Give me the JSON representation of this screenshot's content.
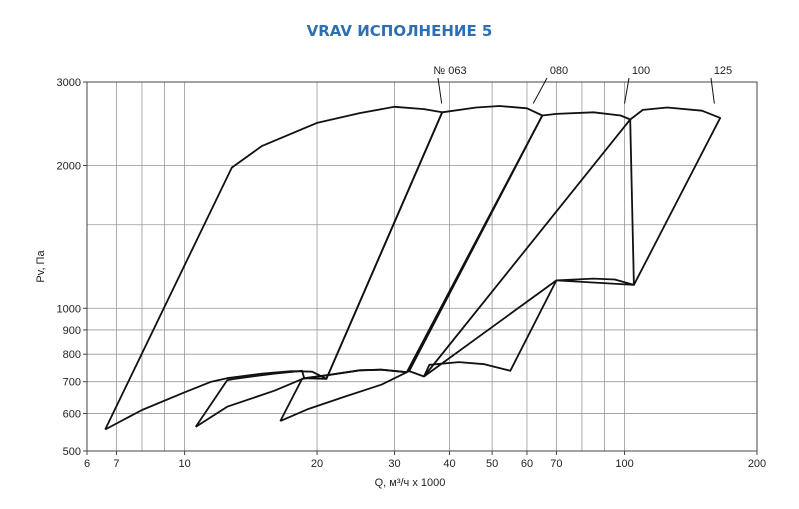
{
  "title": "VRAV ИСПОЛНЕНИЕ 5",
  "colors": {
    "title": "#2e6fb4",
    "grid": "#999999",
    "curve": "#111111"
  },
  "chart_data": {
    "type": "line",
    "title": "VRAV ИСПОЛНЕНИЕ 5",
    "xlabel": "Q, м³/ч x 1000",
    "ylabel": "Pv, Па",
    "xscale": "log",
    "yscale": "log",
    "xlim": [
      6,
      200
    ],
    "ylim": [
      500,
      3000
    ],
    "grid": true,
    "x_ticks": [
      6,
      7,
      10,
      20,
      30,
      40,
      50,
      60,
      70,
      100,
      200
    ],
    "x_tick_labels": [
      "6",
      "7",
      "10",
      "20",
      "30",
      "40",
      "50",
      "60",
      "70",
      "100",
      "200"
    ],
    "x_gridlines": [
      7,
      8,
      9,
      10,
      20,
      30,
      40,
      50,
      60,
      70,
      80,
      90,
      100
    ],
    "y_ticks": [
      500,
      600,
      700,
      800,
      900,
      1000,
      2000,
      3000
    ],
    "y_tick_labels": [
      "500",
      "600",
      "700",
      "800",
      "900",
      "1000",
      "2000",
      "3000"
    ],
    "y_gridlines": [
      600,
      700,
      800,
      900,
      1000,
      1500,
      2000
    ],
    "series": [
      {
        "name": "№ 063",
        "label_anchor": [
          38.4,
          2650
        ],
        "points": [
          [
            6.6,
            555
          ],
          [
            8,
            610
          ],
          [
            10,
            665
          ],
          [
            11.5,
            700
          ],
          [
            12.5,
            712
          ],
          [
            15,
            728
          ],
          [
            17.5,
            737
          ],
          [
            19.5,
            735
          ],
          [
            21,
            710
          ],
          [
            38.5,
            2590
          ],
          [
            35,
            2630
          ],
          [
            30,
            2660
          ],
          [
            25,
            2580
          ],
          [
            20,
            2460
          ],
          [
            15,
            2200
          ],
          [
            12.8,
            1980
          ],
          [
            6.6,
            555
          ]
        ]
      },
      {
        "name": "080",
        "label_anchor": [
          62,
          2650
        ],
        "points": [
          [
            10.6,
            562
          ],
          [
            12.5,
            705
          ],
          [
            13,
            710
          ],
          [
            16,
            728
          ],
          [
            18.5,
            738
          ],
          [
            18.7,
            712
          ],
          [
            21,
            722
          ],
          [
            25,
            740
          ],
          [
            28,
            742
          ],
          [
            32,
            733
          ],
          [
            65,
            2550
          ],
          [
            60,
            2640
          ],
          [
            52,
            2670
          ],
          [
            46,
            2650
          ],
          [
            38.5,
            2590
          ],
          [
            21,
            710
          ],
          [
            18.7,
            712
          ],
          [
            16,
            670
          ],
          [
            12.5,
            620
          ],
          [
            10.6,
            562
          ]
        ]
      },
      {
        "name": "100",
        "label_anchor": [
          100,
          2650
        ],
        "points": [
          [
            16.5,
            578
          ],
          [
            18.5,
            710
          ],
          [
            21,
            722
          ],
          [
            25,
            740
          ],
          [
            28,
            742
          ],
          [
            32,
            733
          ],
          [
            32.4,
            737
          ],
          [
            35,
            718
          ],
          [
            103,
            2500
          ],
          [
            98,
            2550
          ],
          [
            85,
            2590
          ],
          [
            70,
            2570
          ],
          [
            65,
            2550
          ],
          [
            32.4,
            737
          ],
          [
            28,
            690
          ],
          [
            23,
            650
          ],
          [
            19,
            612
          ],
          [
            16.5,
            578
          ]
        ]
      },
      {
        "name": "125",
        "label_anchor": [
          160,
          2650
        ],
        "points": [
          [
            35,
            718
          ],
          [
            36,
            760
          ],
          [
            42,
            770
          ],
          [
            48,
            762
          ],
          [
            55,
            738
          ],
          [
            70,
            1145
          ],
          [
            85,
            1155
          ],
          [
            95,
            1150
          ],
          [
            105,
            1120
          ],
          [
            165,
            2520
          ],
          [
            150,
            2610
          ],
          [
            125,
            2650
          ],
          [
            110,
            2620
          ],
          [
            103,
            2500
          ],
          [
            105,
            1120
          ],
          [
            70,
            1145
          ],
          [
            35,
            718
          ]
        ]
      }
    ]
  }
}
